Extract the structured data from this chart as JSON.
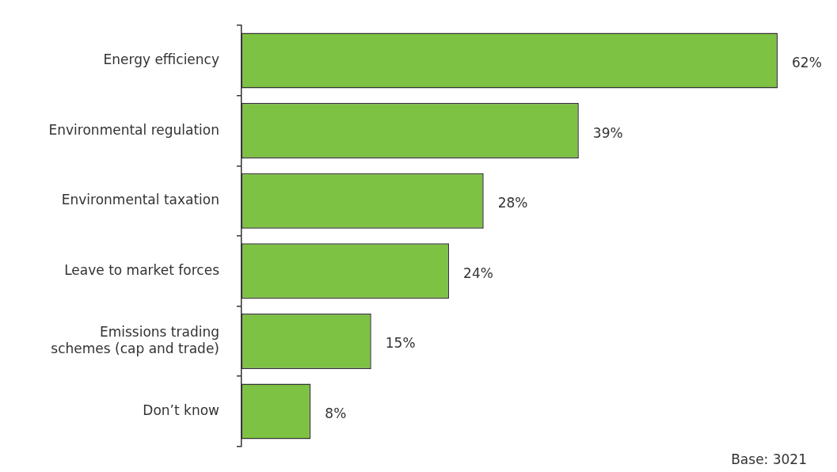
{
  "chart_data": {
    "type": "bar",
    "orientation": "horizontal",
    "categories": [
      "Energy efficiency",
      "Environmental regulation",
      "Environmental taxation",
      "Leave to market forces",
      "Emissions trading schemes (cap and trade)",
      "Don’t know"
    ],
    "values": [
      62,
      39,
      28,
      24,
      15,
      8
    ],
    "value_labels": [
      "62%",
      "39%",
      "28%",
      "24%",
      "15%",
      "8%"
    ],
    "color": "#7dc242",
    "tick_labels": "y",
    "legend": false,
    "annotations": [
      "Base: 3021"
    ]
  }
}
